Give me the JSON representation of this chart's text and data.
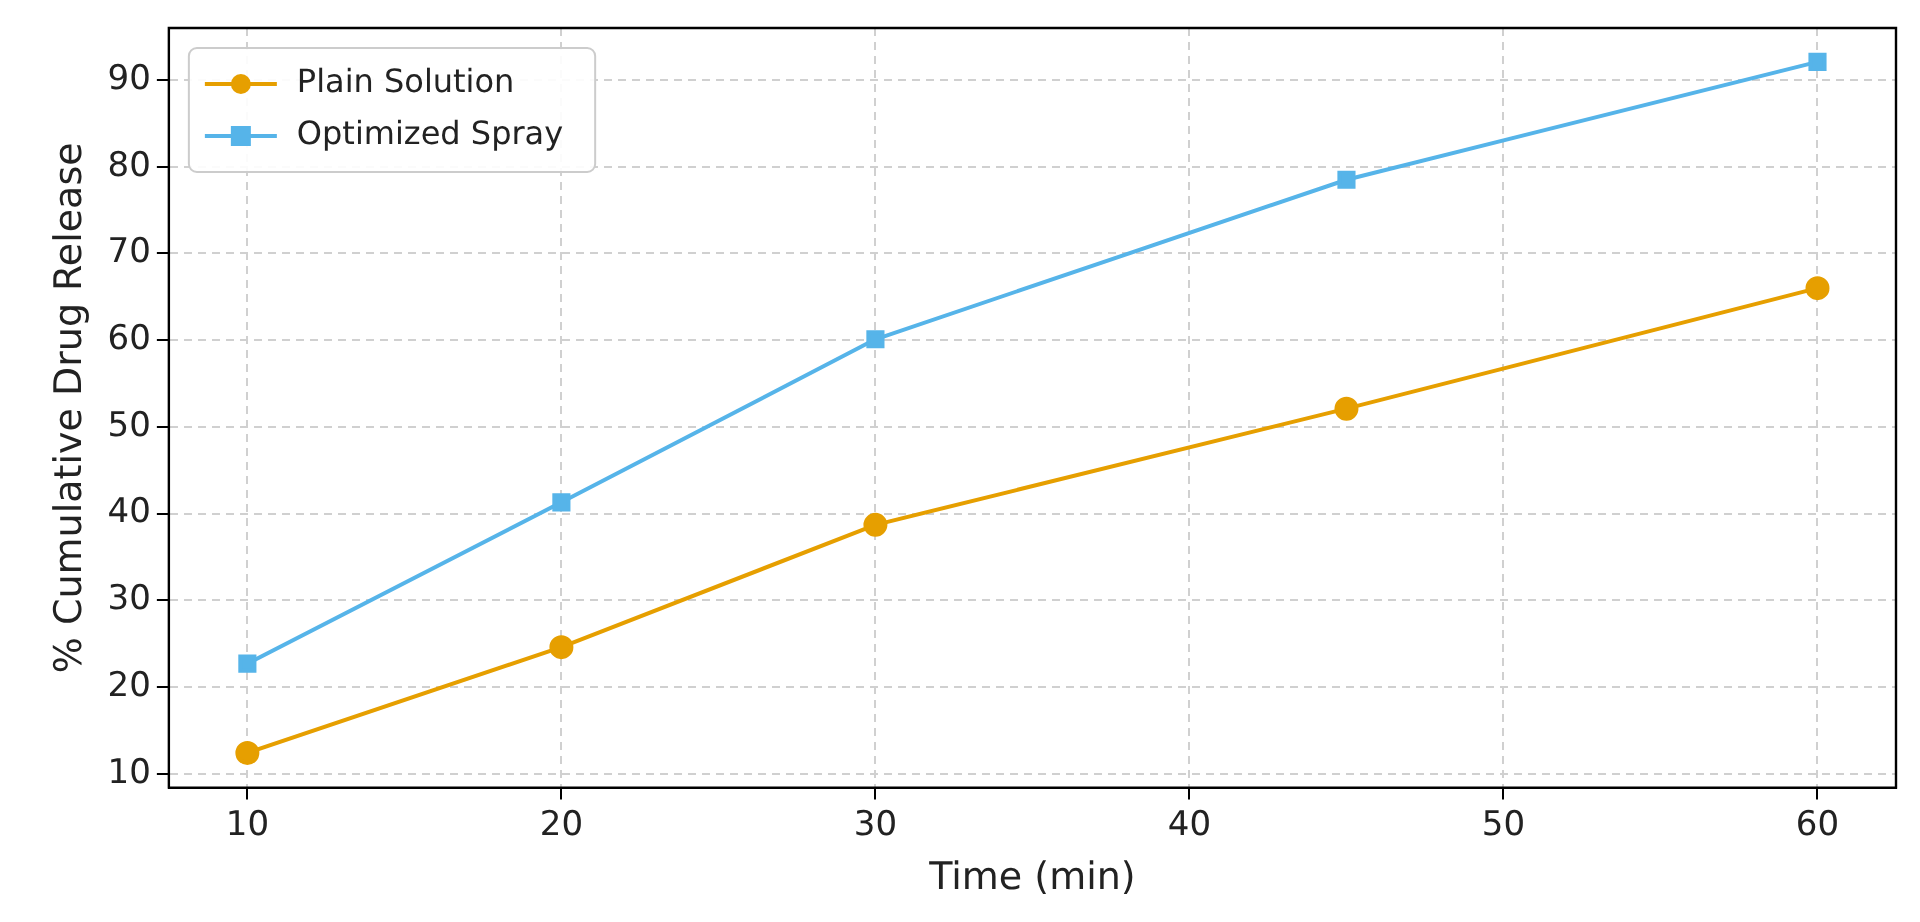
{
  "chart_data": {
    "type": "line",
    "xlabel": "Time (min)",
    "ylabel": "% Cumulative Drug Release",
    "x": [
      10,
      20,
      30,
      45,
      60
    ],
    "series": [
      {
        "name": "Plain Solution",
        "color": "#e69f00",
        "marker": "circle",
        "values": [
          12.4,
          24.6,
          38.7,
          52.1,
          66
        ]
      },
      {
        "name": "Optimized Spray",
        "color": "#56b4e9",
        "marker": "square",
        "values": [
          22.7,
          41.3,
          60.1,
          78.5,
          92.1
        ]
      }
    ],
    "xlim": [
      7.5,
      62.5
    ],
    "xticks": [
      10,
      20,
      30,
      40,
      50,
      60
    ],
    "ylim": [
      8.4,
      96
    ],
    "yticks": [
      10,
      20,
      30,
      40,
      50,
      60,
      70,
      80,
      90
    ],
    "grid": true,
    "legend": "top left",
    "line_style": "solid"
  }
}
